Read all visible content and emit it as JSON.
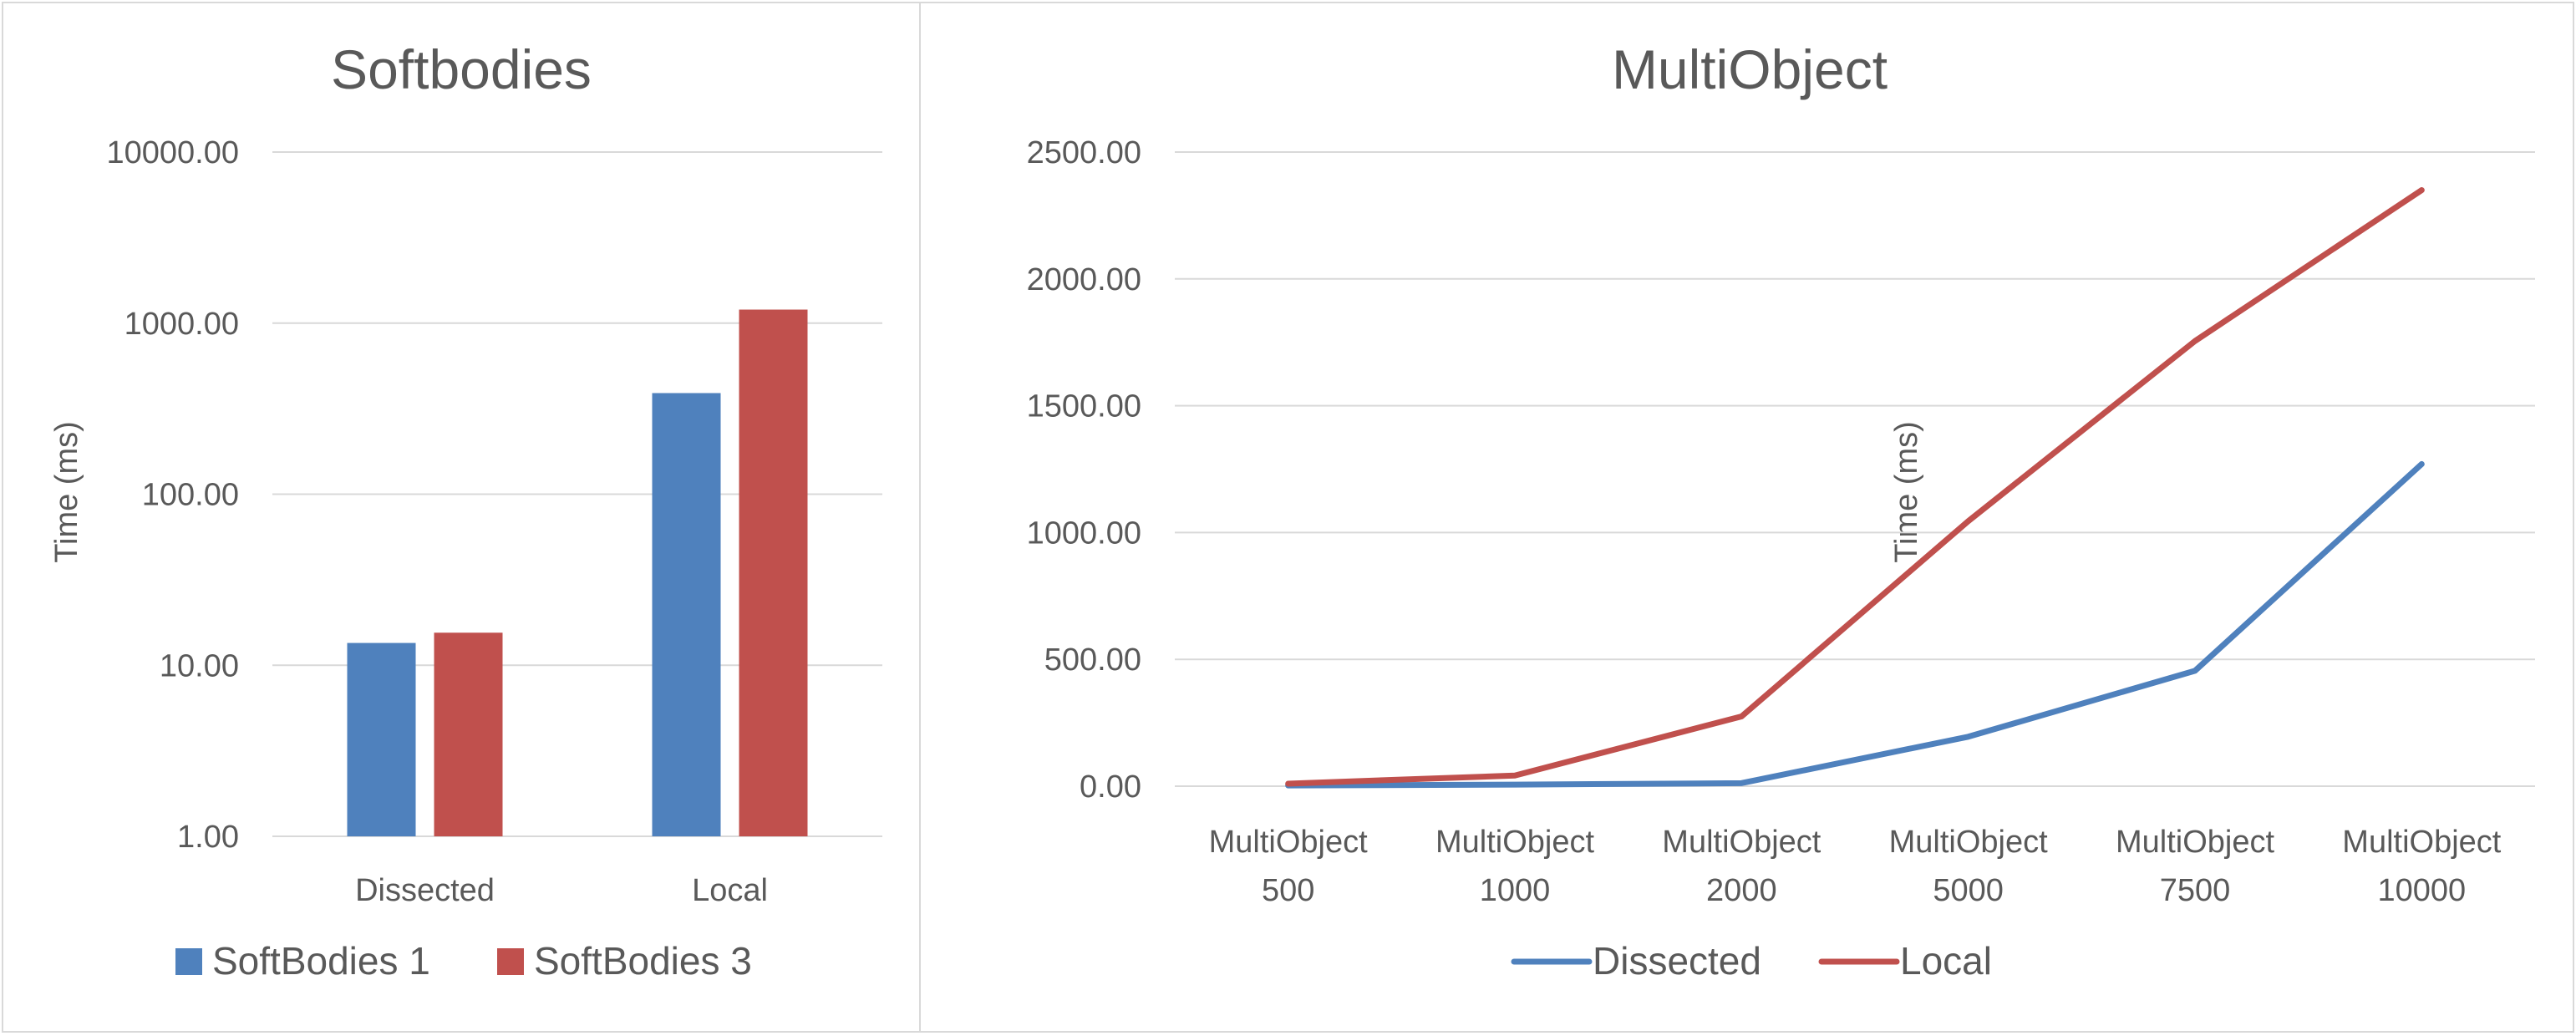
{
  "chart_data": [
    {
      "type": "bar",
      "title": "Softbodies",
      "ylabel": "Time (ms)",
      "xlabel": "",
      "yscale": "log",
      "ylim": [
        1,
        10000
      ],
      "yticks": [
        "10000.00",
        "1000.00",
        "100.00",
        "10.00",
        "1.00"
      ],
      "categories": [
        "Dissected",
        "Local"
      ],
      "series": [
        {
          "name": "SoftBodies 1",
          "color": "#4f81bd",
          "values": [
            13.5,
            390
          ]
        },
        {
          "name": "SoftBodies 3",
          "color": "#c0504d",
          "values": [
            15.5,
            1200
          ]
        }
      ],
      "grid": true,
      "legend": "bottom"
    },
    {
      "type": "line",
      "title": "MultiObject",
      "ylabel": "Time (ms)",
      "xlabel": "",
      "ylim": [
        0,
        2500
      ],
      "yticks": [
        "2500.00",
        "2000.00",
        "1500.00",
        "1000.00",
        "500.00",
        "0.00"
      ],
      "categories": [
        [
          "MultiObject",
          "500"
        ],
        [
          "MultiObject",
          "1000"
        ],
        [
          "MultiObject",
          "2000"
        ],
        [
          "MultiObject",
          "5000"
        ],
        [
          "MultiObject",
          "7500"
        ],
        [
          "MultiObject",
          "10000"
        ]
      ],
      "series": [
        {
          "name": "Dissected",
          "color": "#4f81bd",
          "values": [
            3,
            6,
            12,
            195,
            455,
            1270
          ]
        },
        {
          "name": "Local",
          "color": "#c0504d",
          "values": [
            10,
            42,
            275,
            1045,
            1755,
            2350
          ]
        }
      ],
      "grid": true,
      "legend": "bottom"
    }
  ]
}
